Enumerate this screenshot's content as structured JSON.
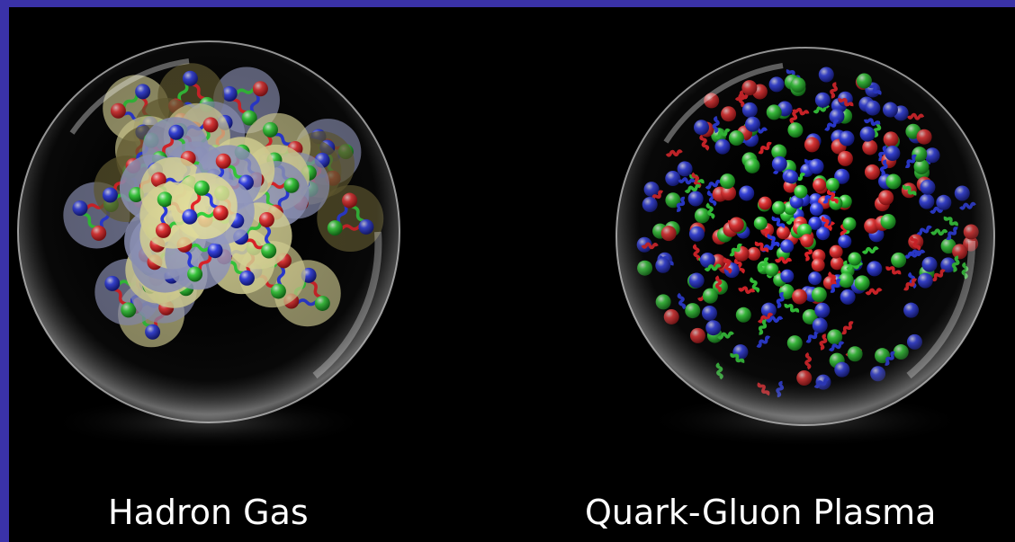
{
  "captions": {
    "left": "Hadron Gas",
    "right": "Quark-Gluon Plasma"
  },
  "colors": {
    "frame": "#3a32a8",
    "background": "#000000",
    "quark_red": "#e8242a",
    "quark_green": "#36d23c",
    "quark_blue": "#2c3ce6",
    "meson_halo": "#6b6232",
    "baryon_halo": "#9aa0c8",
    "yellow_halo": "#e8e3a0"
  },
  "left_sphere": {
    "name": "hadron-gas-sphere",
    "content": "quarks bound into hadrons (triplets) linked by gluon springs"
  },
  "right_sphere": {
    "name": "quark-gluon-plasma-sphere",
    "content": "free quarks and gluons"
  }
}
